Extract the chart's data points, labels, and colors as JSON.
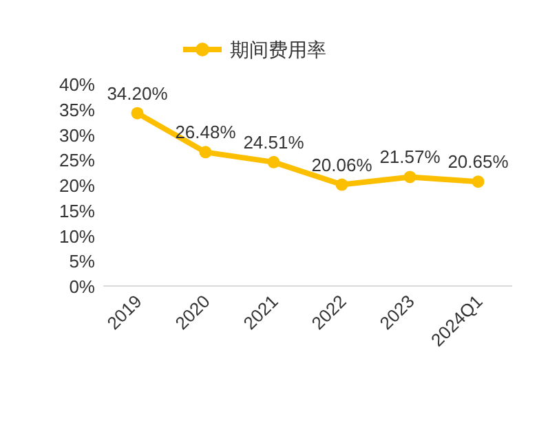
{
  "chart_data": {
    "type": "line",
    "categories": [
      "2019",
      "2020",
      "2021",
      "2022",
      "2023",
      "2024Q1"
    ],
    "series": [
      {
        "name": "期间费用率",
        "color": "#fcbf00",
        "values": [
          34.2,
          26.48,
          24.51,
          20.06,
          21.57,
          20.65
        ],
        "value_labels": [
          "34.20%",
          "26.48%",
          "24.51%",
          "20.06%",
          "21.57%",
          "20.65%"
        ]
      }
    ],
    "ylim": [
      0,
      40
    ],
    "yticks": [
      {
        "value": 0,
        "label": "0%"
      },
      {
        "value": 5,
        "label": "5%"
      },
      {
        "value": 10,
        "label": "10%"
      },
      {
        "value": 15,
        "label": "15%"
      },
      {
        "value": 20,
        "label": "20%"
      },
      {
        "value": 25,
        "label": "25%"
      },
      {
        "value": 30,
        "label": "30%"
      },
      {
        "value": 35,
        "label": "35%"
      },
      {
        "value": 40,
        "label": "40%"
      }
    ],
    "grid": false,
    "legend": "top",
    "marker": "circle",
    "line_style": "solid"
  }
}
